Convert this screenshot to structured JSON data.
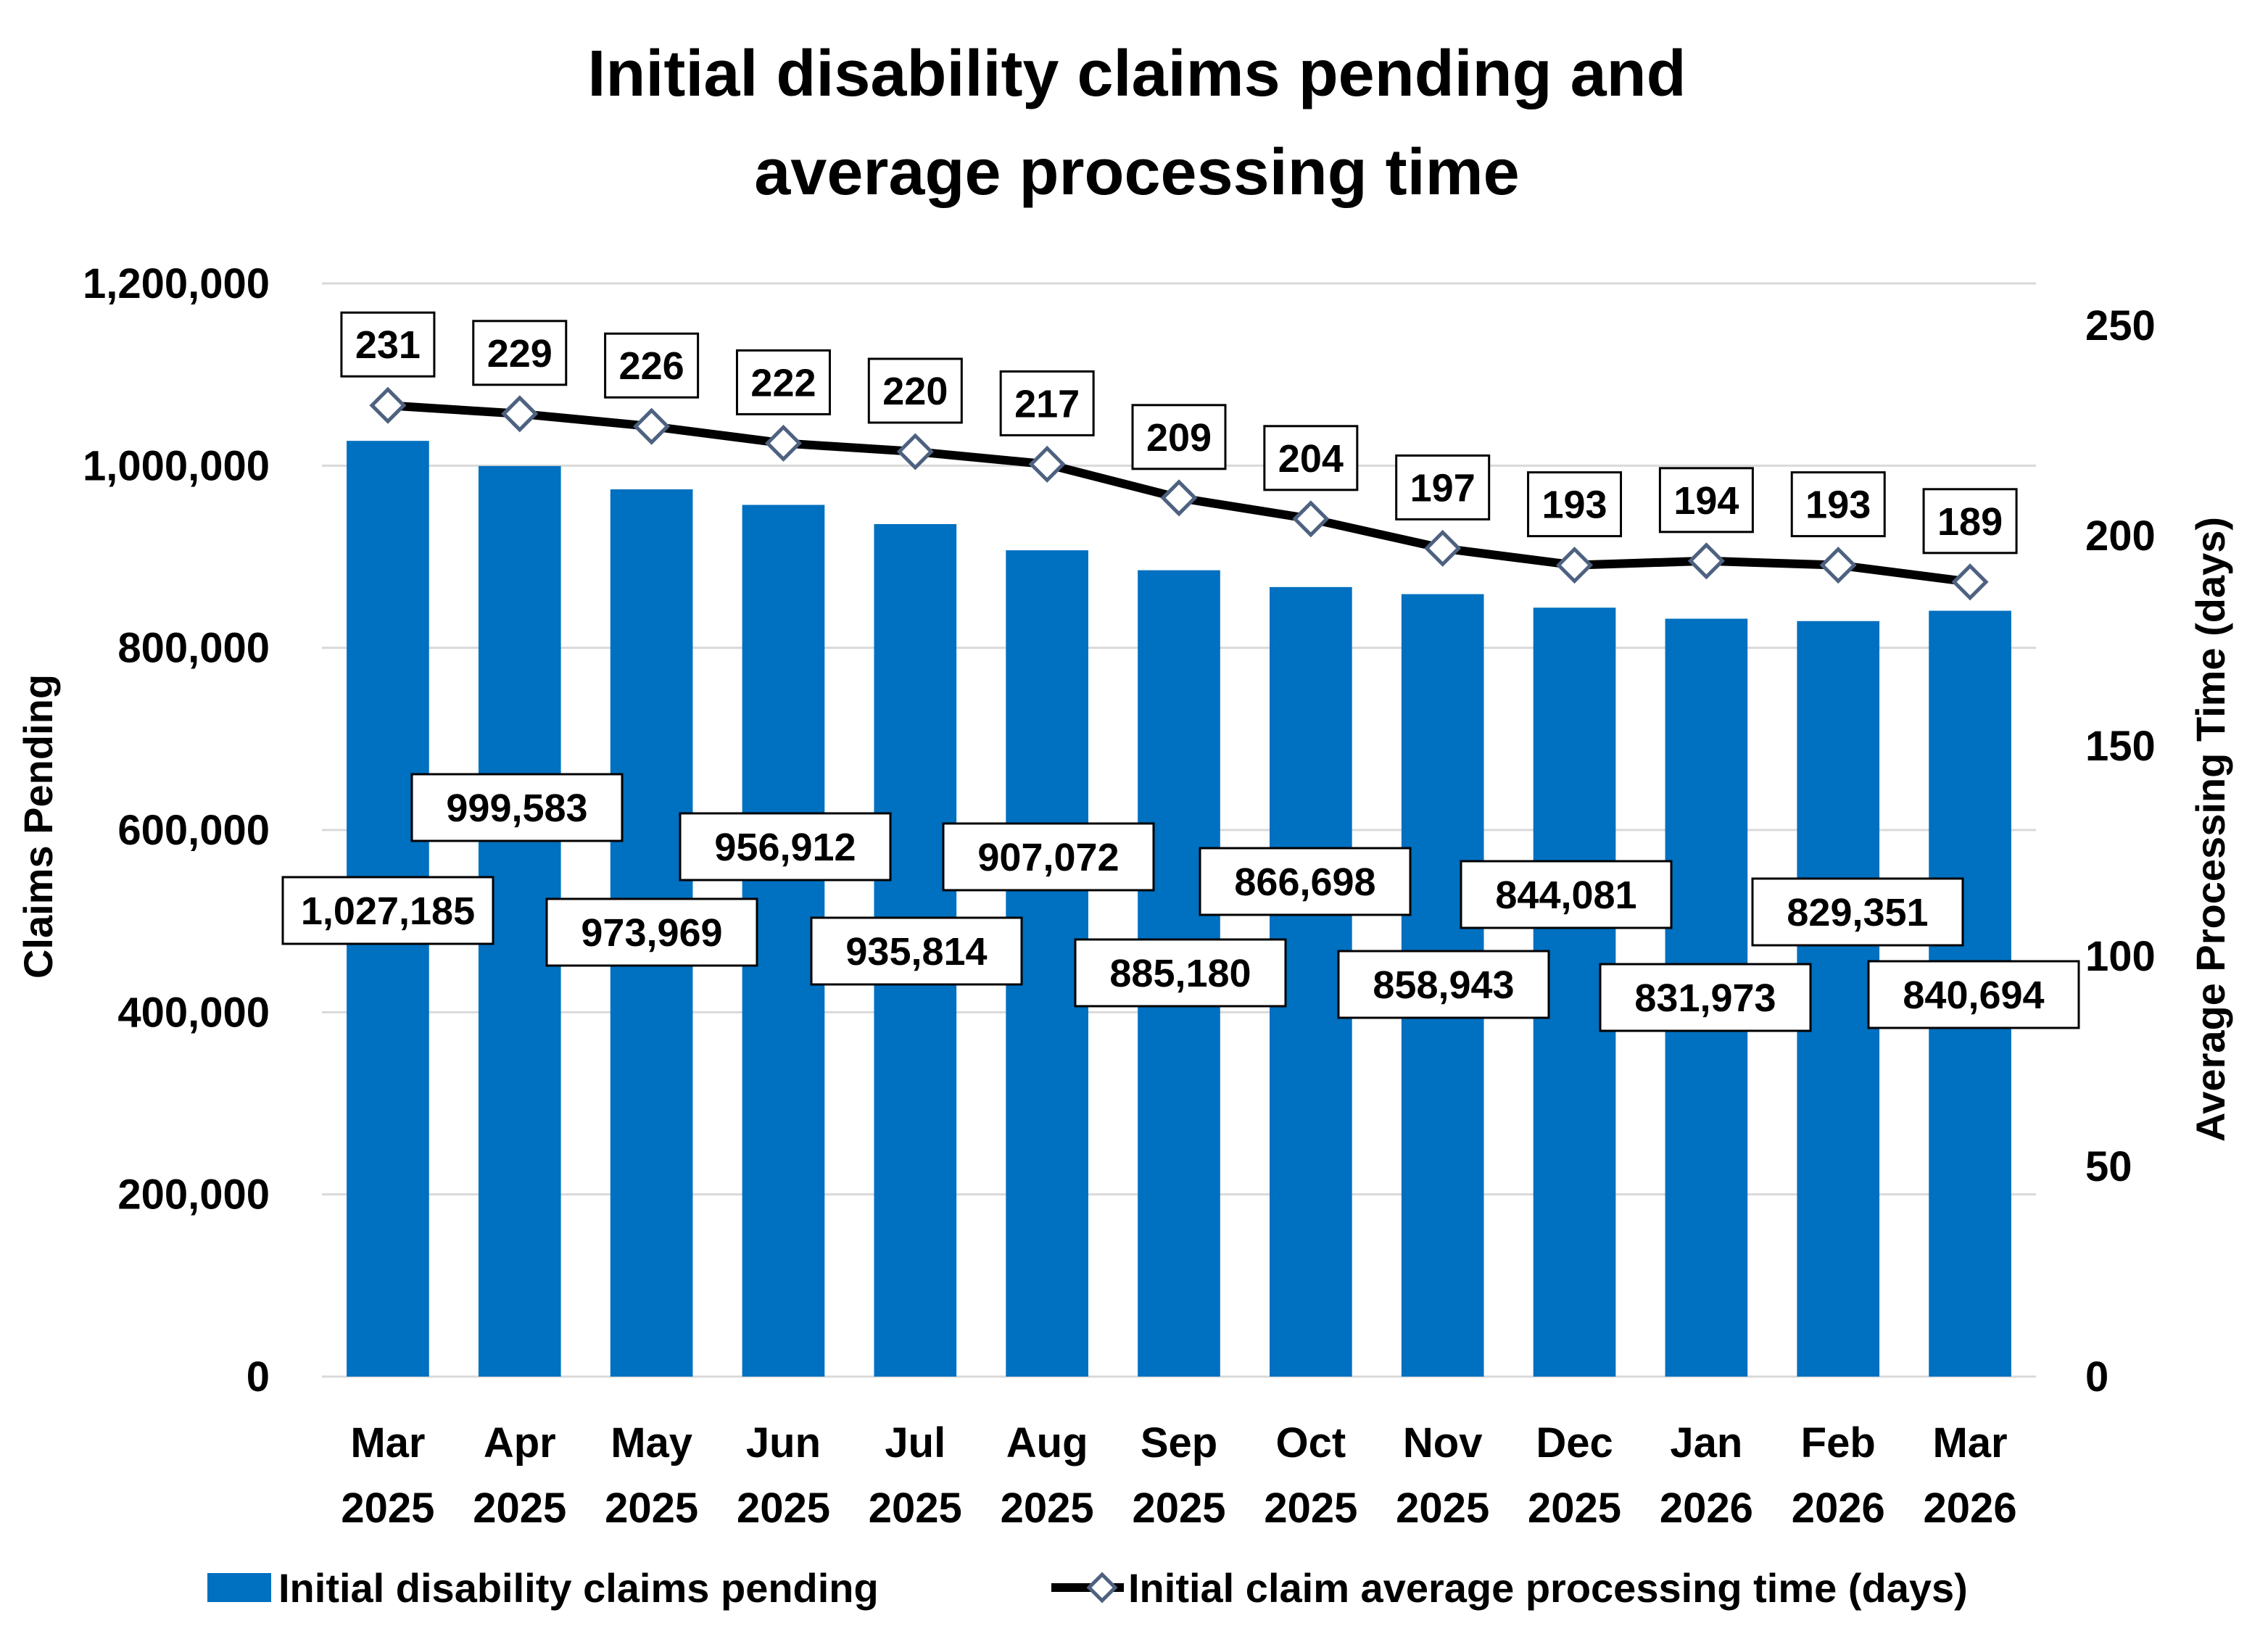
{
  "chart_data": {
    "type": "bar+line",
    "title": [
      "Initial disability claims pending and",
      "average processing time"
    ],
    "categories": [
      [
        "Mar",
        "2025"
      ],
      [
        "Apr",
        "2025"
      ],
      [
        "May",
        "2025"
      ],
      [
        "Jun",
        "2025"
      ],
      [
        "Jul",
        "2025"
      ],
      [
        "Aug",
        "2025"
      ],
      [
        "Sep",
        "2025"
      ],
      [
        "Oct",
        "2025"
      ],
      [
        "Nov",
        "2025"
      ],
      [
        "Dec",
        "2025"
      ],
      [
        "Jan",
        "2026"
      ],
      [
        "Feb",
        "2026"
      ],
      [
        "Mar",
        "2026"
      ]
    ],
    "series": [
      {
        "name": "Initial disability claims pending",
        "type": "bar",
        "axis": "left",
        "color": "#0070c0",
        "values": [
          1027185,
          999583,
          973969,
          956912,
          935814,
          907072,
          885180,
          866698,
          858943,
          844081,
          831973,
          829351,
          840694
        ],
        "labels": [
          "1,027,185",
          "999,583",
          "973,969",
          "956,912",
          "935,814",
          "907,072",
          "885,180",
          "866,698",
          "858,943",
          "844,081",
          "831,973",
          "829,351",
          "840,694"
        ]
      },
      {
        "name": "Initial claim average processing time (days)",
        "type": "line",
        "axis": "right",
        "color": "#000000",
        "marker": "diamond",
        "marker_color": "#4e6180",
        "values": [
          231,
          229,
          226,
          222,
          220,
          217,
          209,
          204,
          197,
          193,
          194,
          193,
          189
        ],
        "labels": [
          "231",
          "229",
          "226",
          "222",
          "220",
          "217",
          "209",
          "204",
          "197",
          "193",
          "194",
          "193",
          "189"
        ]
      }
    ],
    "ylabel": "Claims Pending",
    "y2label": "Average Processing Time (days)",
    "ylim": [
      0,
      1200000
    ],
    "y2lim": [
      0,
      260
    ],
    "yticks": [
      "0",
      "200,000",
      "400,000",
      "600,000",
      "800,000",
      "1,000,000",
      "1,200,000"
    ],
    "ytick_values": [
      0,
      200000,
      400000,
      600000,
      800000,
      1000000,
      1200000
    ],
    "y2ticks": [
      "0",
      "50",
      "100",
      "150",
      "200",
      "250"
    ],
    "y2tick_values": [
      0,
      50,
      100,
      150,
      200,
      250
    ],
    "grid": true,
    "legend": "bottom"
  }
}
